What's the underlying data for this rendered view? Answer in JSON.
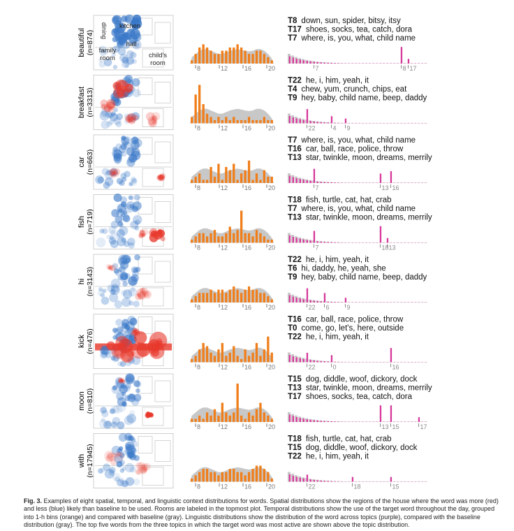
{
  "floorplan_labels": {
    "dining": "dining",
    "kitchen": "kitchen",
    "hall": "hall",
    "family_room": "family\nroom",
    "childs_room": "child's\nroom"
  },
  "colors": {
    "orange": "#f07e1a",
    "gray": "#c8c8c8",
    "purple": "#d6389a",
    "red": "#e8382c",
    "blue": "#3a78c8"
  },
  "rows": [
    {
      "word": "beautiful",
      "n": "(n=874)",
      "hours": [
        1,
        3,
        5,
        6,
        5,
        4,
        3,
        3,
        4,
        4,
        5,
        5,
        6,
        5,
        4,
        3,
        3,
        4,
        4,
        3,
        2,
        1
      ],
      "hour_ticks": [
        "8",
        "12",
        "16",
        "20"
      ],
      "topics": [
        {
          "id": "T8",
          "words": "down, sun, spider, bitsy, itsy"
        },
        {
          "id": "T17",
          "words": "shoes, socks, tea, catch, dora"
        },
        {
          "id": "T7",
          "words": "where, is, you, what, child name"
        }
      ],
      "topic_ticks": [
        "7",
        "8",
        "17"
      ],
      "topic_tick_pos": [
        7,
        32,
        34
      ],
      "topic_peaks": [
        [
          32,
          7
        ],
        [
          34,
          2
        ]
      ]
    },
    {
      "word": "breakfast",
      "n": "(n=3313)",
      "hours": [
        2,
        9,
        12,
        6,
        3,
        2,
        1,
        2,
        1,
        2,
        1,
        2,
        1,
        1,
        1,
        2,
        1,
        1,
        1,
        2,
        1,
        1
      ],
      "hour_ticks": [
        "8",
        "12",
        "16",
        "20"
      ],
      "topics": [
        {
          "id": "T22",
          "words": "he, i, him, yeah, it"
        },
        {
          "id": "T4",
          "words": "chew, yum, crunch, chips, eat"
        },
        {
          "id": "T9",
          "words": "hey, baby, child name, beep, daddy"
        }
      ],
      "topic_ticks": [
        "22",
        "4",
        "9"
      ],
      "topic_tick_pos": [
        5,
        12,
        16
      ],
      "topic_peaks": [
        [
          5,
          6
        ],
        [
          12,
          3
        ],
        [
          16,
          2
        ]
      ]
    },
    {
      "word": "car",
      "n": "(n=663)",
      "hours": [
        1,
        2,
        3,
        1,
        1,
        5,
        2,
        6,
        1,
        5,
        4,
        6,
        1,
        3,
        4,
        7,
        1,
        3,
        1,
        4,
        2,
        2
      ],
      "hour_ticks": [
        "8",
        "12",
        "16",
        "20"
      ],
      "topics": [
        {
          "id": "T7",
          "words": "where, is, you, what, child name"
        },
        {
          "id": "T16",
          "words": "car, ball, race, police, throw"
        },
        {
          "id": "T13",
          "words": "star, twinkle, moon, dreams, merrily"
        }
      ],
      "topic_ticks": [
        "7",
        "13",
        "16"
      ],
      "topic_tick_pos": [
        7,
        26,
        29
      ],
      "topic_peaks": [
        [
          7,
          6
        ],
        [
          26,
          4
        ],
        [
          29,
          5
        ]
      ]
    },
    {
      "word": "fish",
      "n": "(n=719)",
      "hours": [
        1,
        2,
        3,
        3,
        2,
        3,
        4,
        2,
        2,
        3,
        5,
        3,
        4,
        10,
        3,
        3,
        2,
        4,
        3,
        2,
        1,
        1
      ],
      "hour_ticks": [
        "8",
        "12",
        "16",
        "20"
      ],
      "topics": [
        {
          "id": "T18",
          "words": "fish, turtle, cat, hat, crab"
        },
        {
          "id": "T7",
          "words": "where, is, you, what, child name"
        },
        {
          "id": "T13",
          "words": "star, twinkle, moon, dreams, merrily"
        }
      ],
      "topic_ticks": [
        "7",
        "18",
        "13"
      ],
      "topic_tick_pos": [
        7,
        26,
        28
      ],
      "topic_peaks": [
        [
          7,
          5
        ],
        [
          26,
          7
        ],
        [
          28,
          2
        ]
      ]
    },
    {
      "word": "hi",
      "n": "(n=3143)",
      "hours": [
        1,
        2,
        3,
        3,
        3,
        4,
        3,
        4,
        4,
        3,
        4,
        5,
        4,
        3,
        4,
        5,
        4,
        4,
        3,
        3,
        2,
        1
      ],
      "hour_ticks": [
        "8",
        "12",
        "16",
        "20"
      ],
      "topics": [
        {
          "id": "T22",
          "words": "he, i, him, yeah, it"
        },
        {
          "id": "T6",
          "words": "hi, daddy, he, yeah, she"
        },
        {
          "id": "T9",
          "words": "hey, baby, child name, beep, daddy"
        }
      ],
      "topic_ticks": [
        "22",
        "6",
        "9"
      ],
      "topic_tick_pos": [
        5,
        10,
        16
      ],
      "topic_peaks": [
        [
          5,
          6
        ],
        [
          10,
          4
        ],
        [
          16,
          2
        ]
      ]
    },
    {
      "word": "kick",
      "n": "(n=476)",
      "hours": [
        1,
        2,
        4,
        6,
        5,
        3,
        2,
        4,
        6,
        2,
        3,
        5,
        2,
        1,
        4,
        2,
        3,
        6,
        2,
        4,
        8,
        3
      ],
      "hour_ticks": [
        "8",
        "12",
        "16",
        "20"
      ],
      "topics": [
        {
          "id": "T16",
          "words": "car, ball, race, police, throw"
        },
        {
          "id": "T0",
          "words": "come, go, let's, here, outside"
        },
        {
          "id": "T22",
          "words": "he, i, him, yeah, it"
        }
      ],
      "topic_ticks": [
        "22",
        "0",
        "16"
      ],
      "topic_tick_pos": [
        5,
        12,
        29
      ],
      "topic_peaks": [
        [
          5,
          4
        ],
        [
          12,
          3
        ],
        [
          29,
          6
        ]
      ]
    },
    {
      "word": "moon",
      "n": "(n=810)",
      "hours": [
        1,
        1,
        2,
        1,
        3,
        2,
        4,
        2,
        6,
        3,
        2,
        3,
        12,
        2,
        1,
        3,
        2,
        4,
        6,
        3,
        2,
        1
      ],
      "hour_ticks": [
        "8",
        "12",
        "16",
        "20"
      ],
      "topics": [
        {
          "id": "T15",
          "words": "dog, diddle, woof, dickory, dock"
        },
        {
          "id": "T13",
          "words": "star, twinkle, moon, dreams, merrily"
        },
        {
          "id": "T17",
          "words": "shoes, socks, tea, catch, dora"
        }
      ],
      "topic_ticks": [
        "13",
        "15",
        "17"
      ],
      "topic_tick_pos": [
        26,
        29,
        37
      ],
      "topic_peaks": [
        [
          26,
          7
        ],
        [
          29,
          7
        ],
        [
          37,
          2
        ]
      ]
    },
    {
      "word": "with",
      "n": "(n=17945)",
      "hours": [
        1,
        2,
        3,
        4,
        4,
        3,
        3,
        2,
        3,
        3,
        4,
        4,
        3,
        3,
        2,
        3,
        4,
        5,
        5,
        4,
        3,
        1
      ],
      "hour_ticks": [
        "8",
        "12",
        "16",
        "20"
      ],
      "topics": [
        {
          "id": "T18",
          "words": "fish, turtle, cat, hat, crab"
        },
        {
          "id": "T15",
          "words": "dog, diddle, woof, dickory, dock"
        },
        {
          "id": "T22",
          "words": "he, i, him, yeah, it"
        }
      ],
      "topic_ticks": [
        "22",
        "18",
        "15"
      ],
      "topic_tick_pos": [
        5,
        18,
        29
      ],
      "topic_peaks": [
        [
          5,
          3
        ],
        [
          18,
          2
        ],
        [
          29,
          2
        ]
      ]
    }
  ],
  "caption": {
    "label": "Fig. 3.",
    "text": "Examples of eight spatial, temporal, and linguistic context distributions for words. Spatial distributions show the regions of the house where the word was more (red) and less (blue) likely than baseline to be used. Rooms are labeled in the topmost plot. Temporal distributions show the use of the target word throughout the day, grouped into 1-h bins (orange) and compared with baseline (gray). Linguistic distributions show the distribution of the word across topics (purple), compared with the baseline distribution (gray). The top five words from the three topics in which the target word was most active are shown above the topic distribution."
  }
}
